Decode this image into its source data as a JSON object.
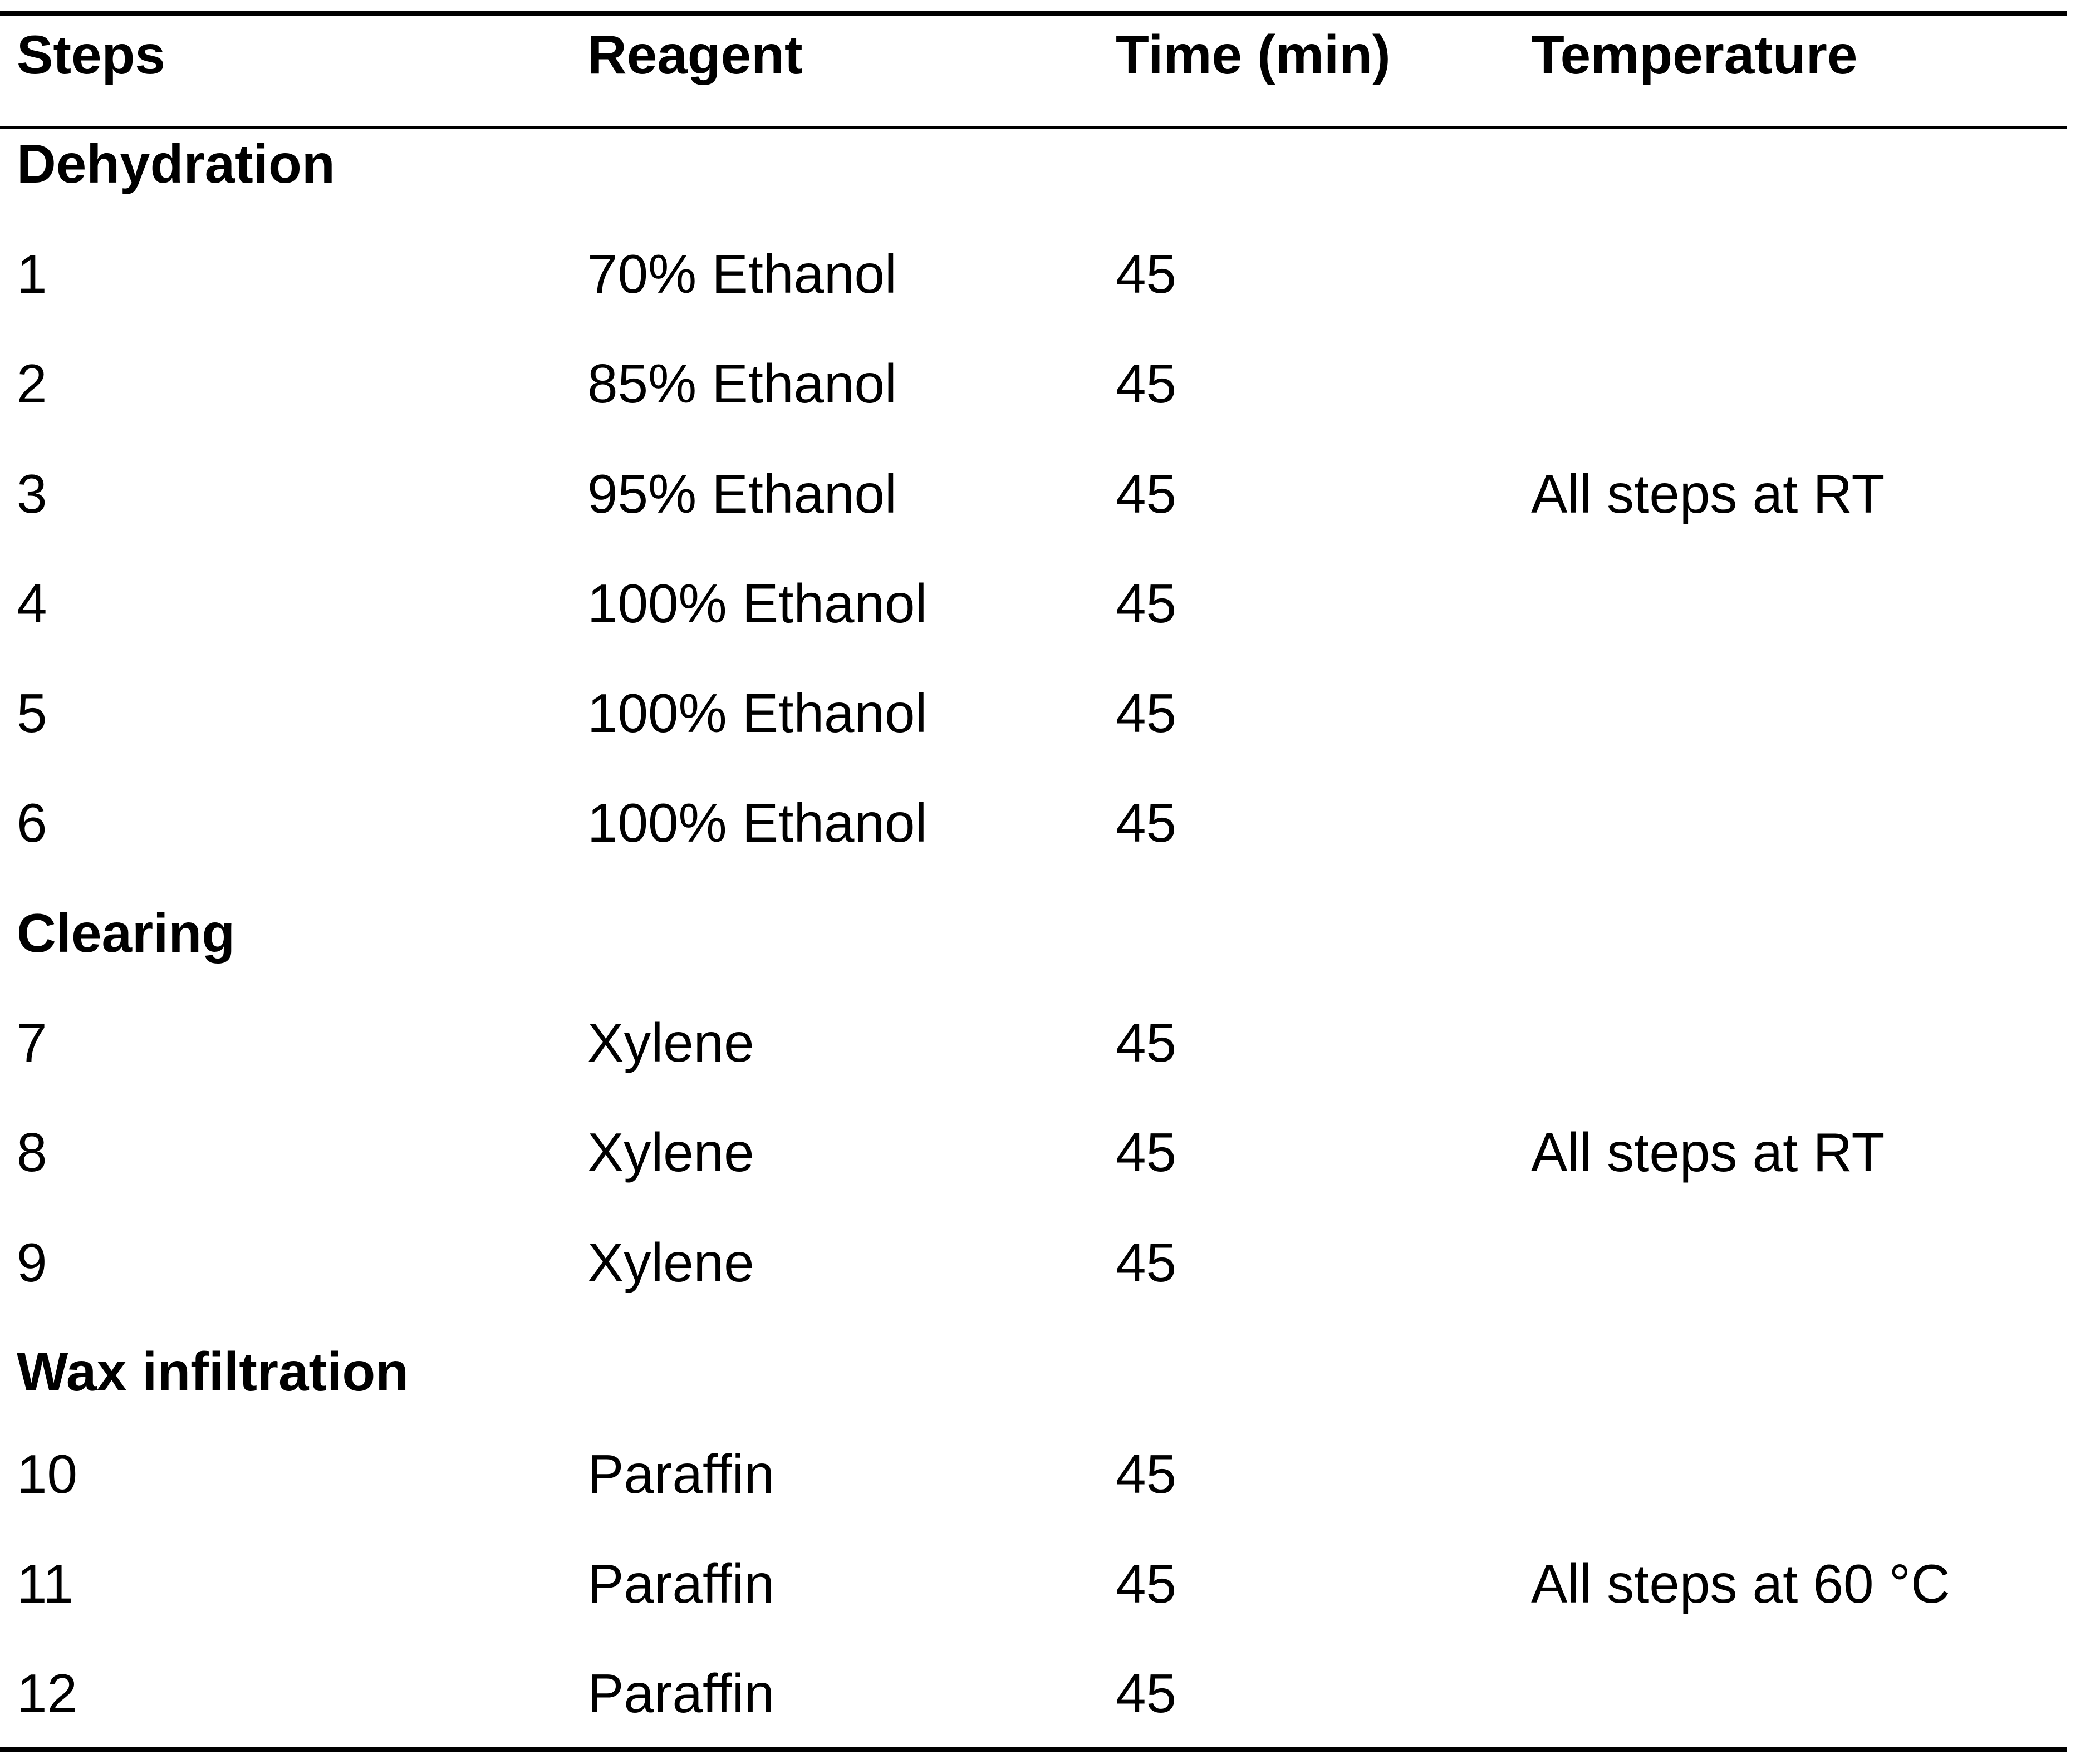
{
  "table": {
    "headers": {
      "steps": "Steps",
      "reagent": "Reagent",
      "time": "Time (min)",
      "temperature": "Temperature"
    },
    "sections": [
      {
        "title": "Dehydration",
        "rows": [
          {
            "step": "1",
            "reagent": "70% Ethanol",
            "time": "45",
            "temperature": ""
          },
          {
            "step": "2",
            "reagent": "85% Ethanol",
            "time": "45",
            "temperature": ""
          },
          {
            "step": "3",
            "reagent": "95% Ethanol",
            "time": "45",
            "temperature": "All steps at RT"
          },
          {
            "step": "4",
            "reagent": "100% Ethanol",
            "time": "45",
            "temperature": ""
          },
          {
            "step": "5",
            "reagent": "100% Ethanol",
            "time": "45",
            "temperature": ""
          },
          {
            "step": "6",
            "reagent": "100% Ethanol",
            "time": "45",
            "temperature": ""
          }
        ]
      },
      {
        "title": "Clearing",
        "rows": [
          {
            "step": "7",
            "reagent": "Xylene",
            "time": "45",
            "temperature": ""
          },
          {
            "step": "8",
            "reagent": "Xylene",
            "time": "45",
            "temperature": "All steps at RT"
          },
          {
            "step": "9",
            "reagent": "Xylene",
            "time": "45",
            "temperature": ""
          }
        ]
      },
      {
        "title": "Wax infiltration",
        "rows": [
          {
            "step": "10",
            "reagent": "Paraffin",
            "time": "45",
            "temperature": ""
          },
          {
            "step": "11",
            "reagent": "Paraffin",
            "time": "45",
            "temperature": "All steps at 60 °C"
          },
          {
            "step": "12",
            "reagent": "Paraffin",
            "time": "45",
            "temperature": ""
          }
        ]
      }
    ]
  }
}
